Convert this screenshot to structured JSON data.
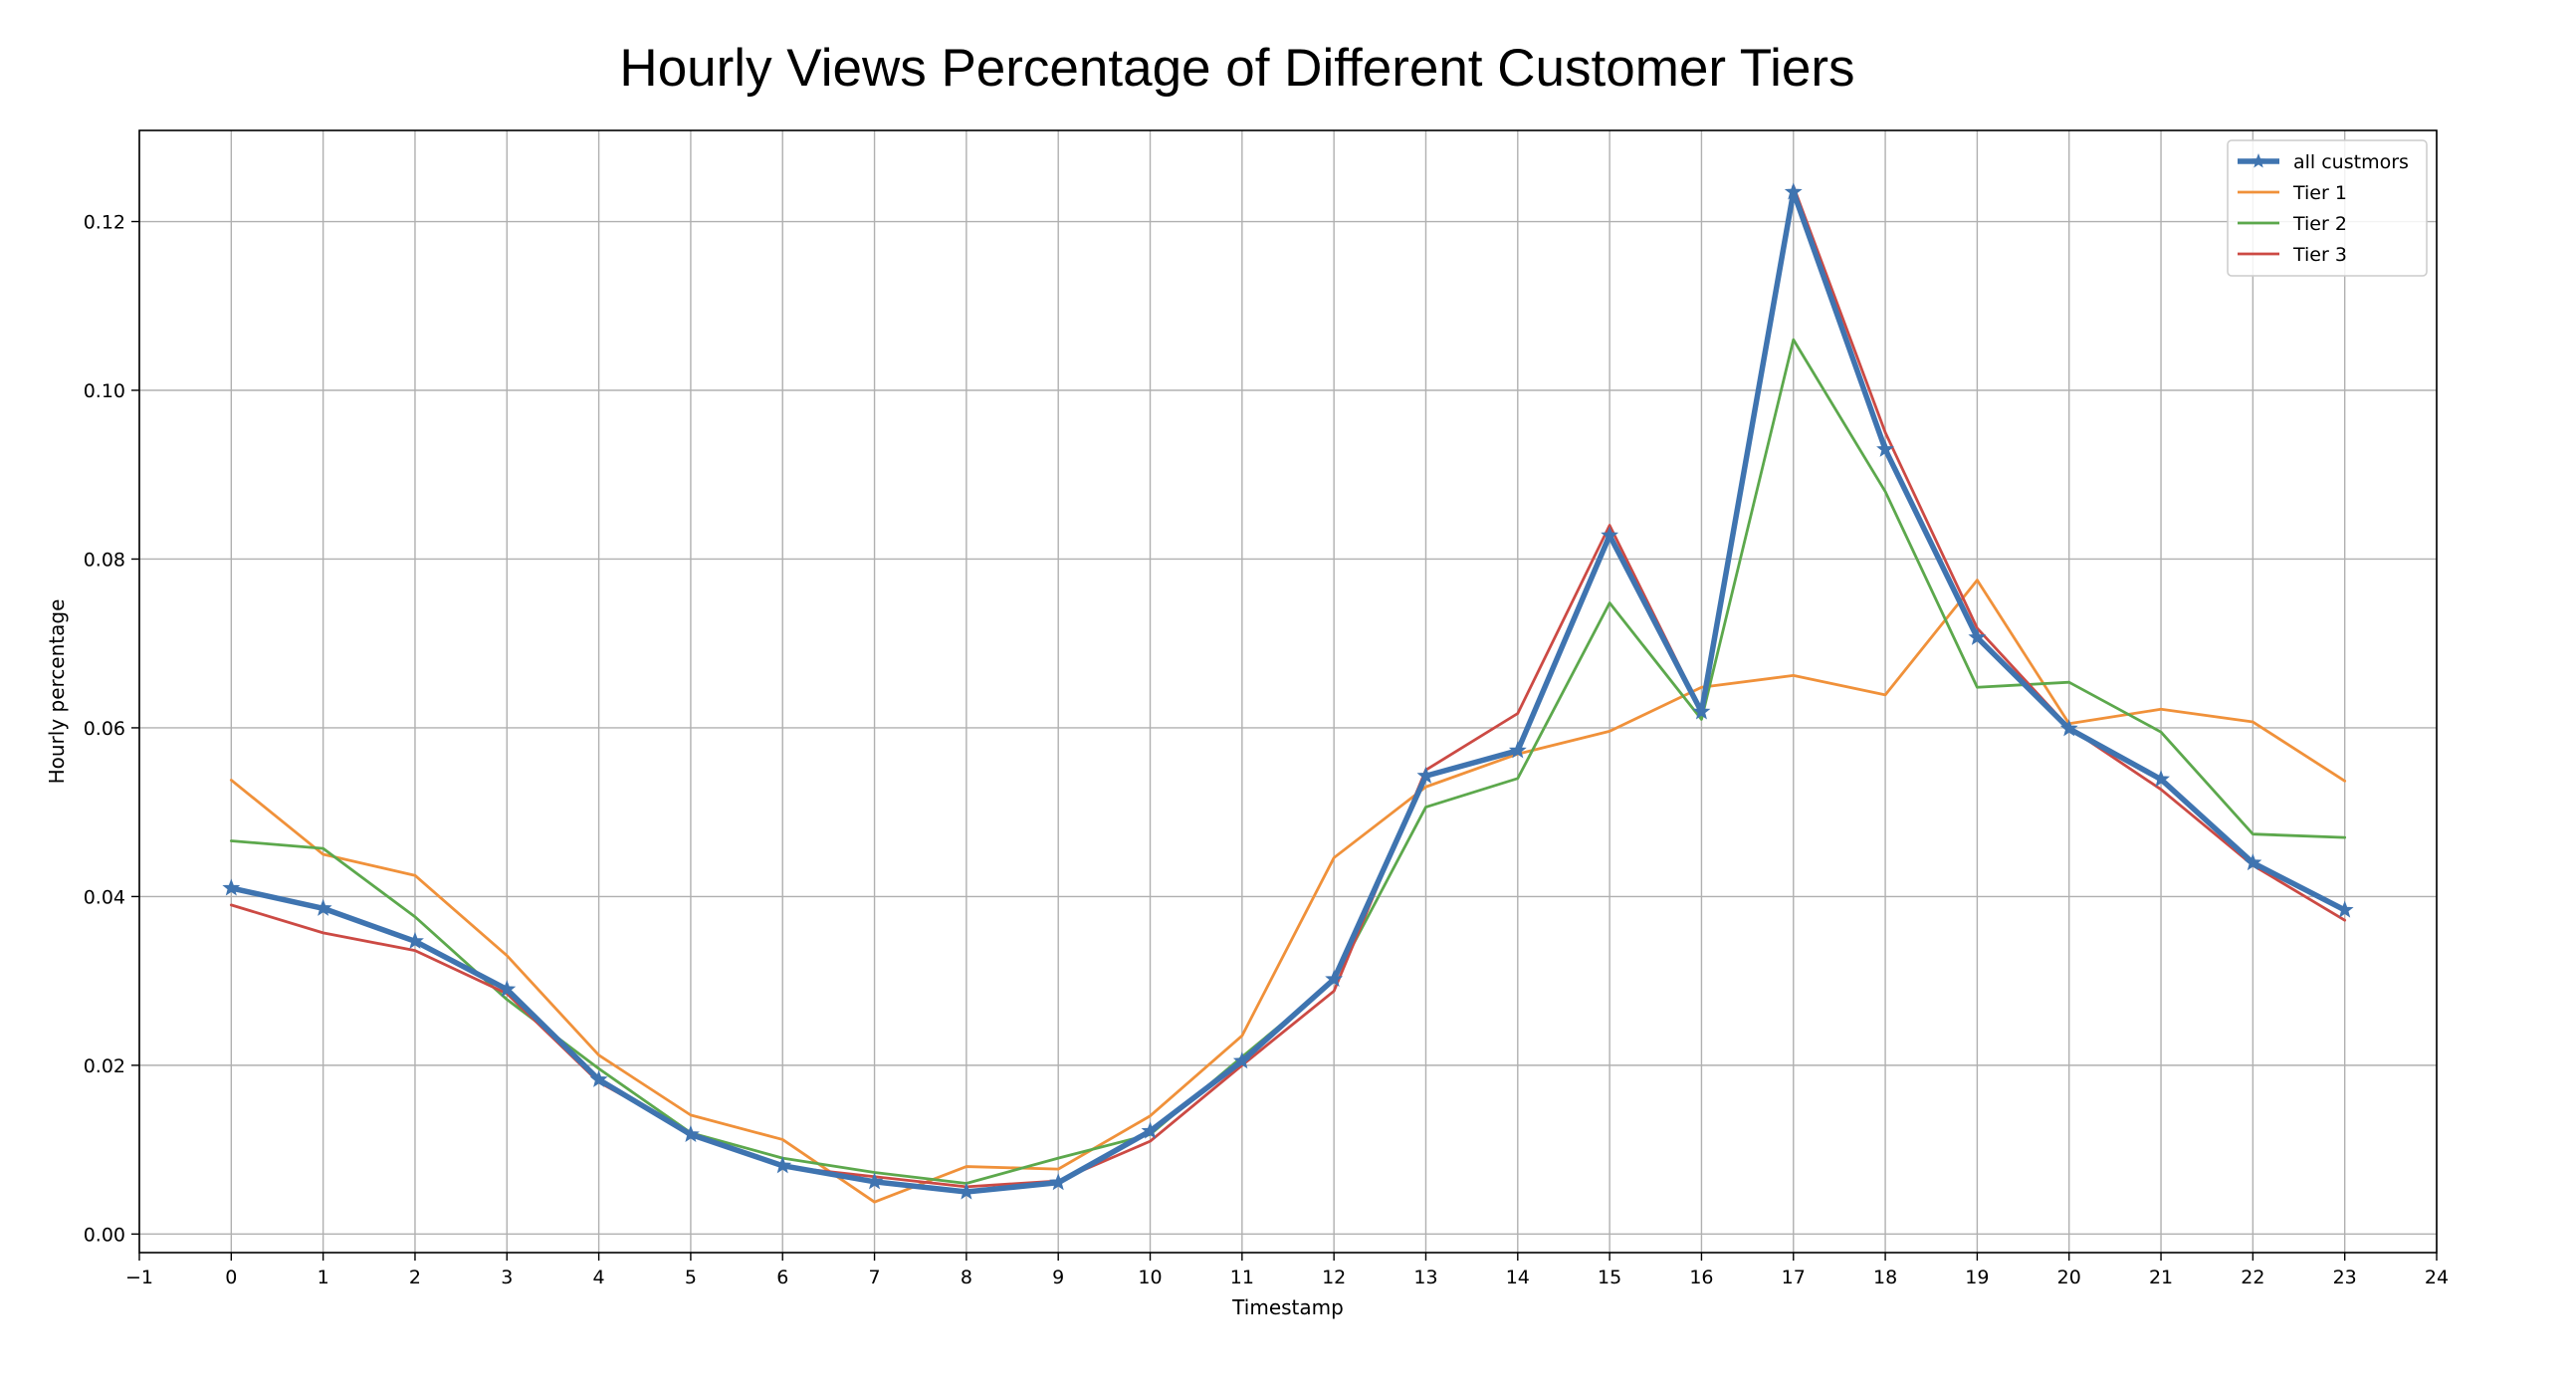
{
  "chart_data": {
    "type": "line",
    "title": "Hourly Views Percentage of Different Customer Tiers",
    "xlabel": "Timestamp",
    "ylabel": "Hourly percentage",
    "xlim": [
      -1,
      24
    ],
    "ylim": [
      -0.0022,
      0.1308
    ],
    "x_ticks": [
      -1,
      0,
      1,
      2,
      3,
      4,
      5,
      6,
      7,
      8,
      9,
      10,
      11,
      12,
      13,
      14,
      15,
      16,
      17,
      18,
      19,
      20,
      21,
      22,
      23,
      24
    ],
    "x_tick_labels": [
      "−1",
      "0",
      "1",
      "2",
      "3",
      "4",
      "5",
      "6",
      "7",
      "8",
      "9",
      "10",
      "11",
      "12",
      "13",
      "14",
      "15",
      "16",
      "17",
      "18",
      "19",
      "20",
      "21",
      "22",
      "23",
      "24"
    ],
    "y_ticks": [
      0.0,
      0.02,
      0.04,
      0.06,
      0.08,
      0.1,
      0.12
    ],
    "y_tick_labels": [
      "0.00",
      "0.02",
      "0.04",
      "0.06",
      "0.08",
      "0.10",
      "0.12"
    ],
    "grid": true,
    "legend_position": "top-right",
    "x": [
      0,
      1,
      2,
      3,
      4,
      5,
      6,
      7,
      8,
      9,
      10,
      11,
      12,
      13,
      14,
      15,
      16,
      17,
      18,
      19,
      20,
      21,
      22,
      23
    ],
    "series": [
      {
        "name": "all custmors",
        "color": "#3f74b0",
        "marker": "star",
        "emphasis": true,
        "values": [
          0.041,
          0.0386,
          0.0347,
          0.029,
          0.0183,
          0.0118,
          0.0081,
          0.0062,
          0.005,
          0.0061,
          0.0122,
          0.0205,
          0.0302,
          0.0543,
          0.0573,
          0.0828,
          0.0619,
          0.1235,
          0.093,
          0.0707,
          0.0599,
          0.0539,
          0.044,
          0.0384
        ]
      },
      {
        "name": "Tier 1",
        "color": "#f0913a",
        "values": [
          0.0538,
          0.045,
          0.0425,
          0.033,
          0.0212,
          0.0141,
          0.0112,
          0.0038,
          0.008,
          0.0077,
          0.014,
          0.0235,
          0.0446,
          0.053,
          0.0569,
          0.0596,
          0.0648,
          0.0662,
          0.0639,
          0.0775,
          0.0605,
          0.0622,
          0.0607,
          0.0537
        ]
      },
      {
        "name": "Tier 2",
        "color": "#5ca84c",
        "values": [
          0.0466,
          0.0457,
          0.0376,
          0.0278,
          0.0196,
          0.012,
          0.009,
          0.0073,
          0.006,
          0.009,
          0.0118,
          0.021,
          0.03,
          0.0506,
          0.054,
          0.0748,
          0.061,
          0.106,
          0.088,
          0.0648,
          0.0654,
          0.0595,
          0.0474,
          0.047
        ]
      },
      {
        "name": "Tier 3",
        "color": "#cc4a44",
        "values": [
          0.039,
          0.0357,
          0.0336,
          0.0285,
          0.018,
          0.012,
          0.008,
          0.0068,
          0.0056,
          0.0063,
          0.011,
          0.02,
          0.0288,
          0.055,
          0.0617,
          0.084,
          0.062,
          0.1242,
          0.095,
          0.0718,
          0.06,
          0.0527,
          0.0437,
          0.0372
        ]
      }
    ]
  }
}
